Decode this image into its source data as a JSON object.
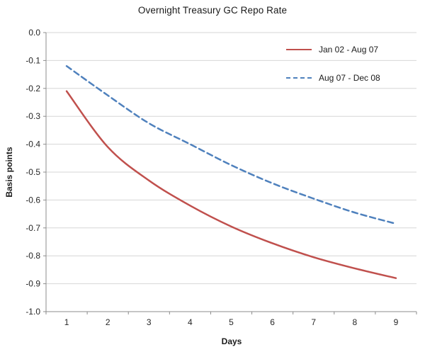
{
  "chart_data": {
    "type": "line",
    "title": "Overnight Treasury GC Repo Rate",
    "xlabel": "Days",
    "ylabel": "Basis points",
    "x": [
      1,
      2,
      3,
      4,
      5,
      6,
      7,
      8,
      9
    ],
    "series": [
      {
        "name": "Jan 02 - Aug 07",
        "color": "#c0504d",
        "style": "solid",
        "values": [
          -0.21,
          -0.41,
          -0.53,
          -0.62,
          -0.695,
          -0.755,
          -0.805,
          -0.845,
          -0.88
        ]
      },
      {
        "name": "Aug 07 - Dec 08",
        "color": "#4f81bd",
        "style": "dashed",
        "values": [
          -0.12,
          -0.225,
          -0.325,
          -0.4,
          -0.475,
          -0.54,
          -0.595,
          -0.645,
          -0.685
        ]
      }
    ],
    "ylim": [
      -1.0,
      0.0
    ],
    "ytick_step": 0.1,
    "ytick_decimals": 1,
    "grid": true,
    "legend_position": "top-right",
    "colors": {
      "gridline": "#d6d6d6",
      "axis": "#8c8c8c",
      "tick_label": "#262626",
      "background": "#ffffff"
    }
  }
}
